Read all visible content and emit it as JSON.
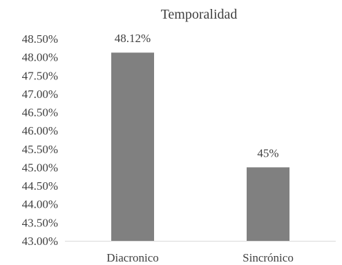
{
  "chart_data": {
    "type": "bar",
    "title": "Temporalidad",
    "xlabel": "",
    "ylabel": "",
    "categories": [
      "Diacronico",
      "Sincrónico"
    ],
    "values": [
      48.12,
      45.0
    ],
    "data_labels": [
      "48.12%",
      "45%"
    ],
    "ylim": [
      43.0,
      48.5
    ],
    "y_ticks": [
      43.0,
      43.5,
      44.0,
      44.5,
      45.0,
      45.5,
      46.0,
      46.5,
      47.0,
      47.5,
      48.0,
      48.5
    ],
    "y_tick_labels": [
      "43.00%",
      "43.50%",
      "44.00%",
      "44.50%",
      "45.00%",
      "45.50%",
      "46.00%",
      "46.50%",
      "47.00%",
      "47.50%",
      "48.00%",
      "48.50%"
    ],
    "bar_color": "#808080",
    "gridlines": false,
    "legend": "none"
  }
}
